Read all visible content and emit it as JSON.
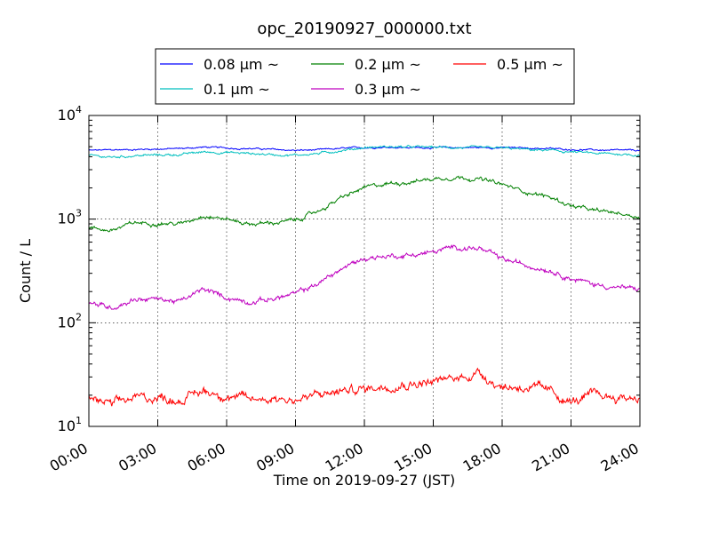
{
  "chart_data": {
    "type": "line",
    "title": "opc_20190927_000000.txt",
    "xlabel": "Time on 2019-09-27 (JST)",
    "ylabel": "Count / L",
    "yscale": "log",
    "xlim": [
      0,
      24
    ],
    "ylim": [
      10,
      10000
    ],
    "grid": true,
    "legend_position": "top-center",
    "x_ticks": [
      "00:00",
      "03:00",
      "06:00",
      "09:00",
      "12:00",
      "15:00",
      "18:00",
      "21:00",
      "24:00"
    ],
    "y_ticks": [
      {
        "value": 10,
        "base": "10",
        "exp": "1"
      },
      {
        "value": 100,
        "base": "10",
        "exp": "2"
      },
      {
        "value": 1000,
        "base": "10",
        "exp": "3"
      },
      {
        "value": 10000,
        "base": "10",
        "exp": "4"
      }
    ],
    "x": [
      0,
      1,
      2,
      3,
      4,
      5,
      6,
      7,
      8,
      9,
      10,
      11,
      12,
      13,
      14,
      15,
      16,
      17,
      18,
      19,
      20,
      21,
      22,
      23,
      24
    ],
    "series": [
      {
        "name": "0.08 µm ~",
        "color": "#0000ff",
        "values": [
          4600,
          4650,
          4700,
          4750,
          4800,
          4950,
          4850,
          4800,
          4700,
          4600,
          4650,
          4800,
          4900,
          4950,
          4900,
          4900,
          4900,
          4900,
          4900,
          4850,
          4800,
          4700,
          4650,
          4600,
          4600
        ]
      },
      {
        "name": "0.1 µm ~",
        "color": "#00bfbf",
        "values": [
          4100,
          3950,
          4100,
          4150,
          4200,
          4450,
          4400,
          4300,
          4200,
          4150,
          4300,
          4600,
          4900,
          5000,
          4950,
          4950,
          4900,
          4850,
          4850,
          4700,
          4600,
          4450,
          4300,
          4250,
          4150
        ]
      },
      {
        "name": "0.2 µm ~",
        "color": "#008000",
        "values": [
          820,
          780,
          920,
          920,
          900,
          1100,
          1000,
          900,
          920,
          970,
          1200,
          1600,
          2000,
          2200,
          2300,
          2450,
          2550,
          2450,
          2150,
          1850,
          1650,
          1350,
          1200,
          1150,
          1050
        ]
      },
      {
        "name": "0.3 µm ~",
        "color": "#bf00bf",
        "values": [
          155,
          140,
          170,
          170,
          160,
          210,
          175,
          160,
          170,
          190,
          240,
          330,
          420,
          440,
          450,
          480,
          540,
          520,
          410,
          360,
          330,
          270,
          235,
          220,
          210
        ]
      },
      {
        "name": "0.5 µm ~",
        "color": "#ff0000",
        "values": [
          19,
          16,
          19,
          19,
          18,
          22,
          20,
          18,
          19,
          18,
          20,
          22,
          23,
          25,
          26,
          27,
          29,
          33,
          24,
          24,
          22,
          17,
          20,
          19,
          19
        ]
      }
    ]
  }
}
